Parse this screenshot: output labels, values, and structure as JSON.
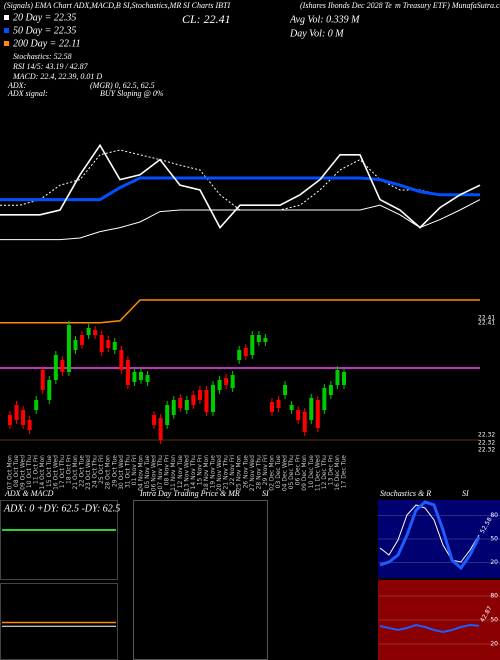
{
  "header": {
    "title_parts": [
      "(Signals) EMA Chart ADX,MACD,B",
      "SI,Stochastics,MR",
      "SI Charts IBTI",
      "(Ishares Ibonds Dec 2028 Te",
      "m Treasury ETF) MunafaSutra.com"
    ],
    "close": "CL: 22.41",
    "avg_vol": "Avg Vol: 0.339 M",
    "day_vol": "Day Vol: 0  M",
    "legend": [
      "20 Day = 22.35",
      "50 Day = 22.35",
      "200 Day = 22.11",
      "Stochastics: 52.58",
      "RSI 14/5: 43.19 / 42.87",
      "MACD: 22.4, 22.39, 0.01 D"
    ],
    "adx": "ADX:",
    "adx_values": "(MGR) 0, 62.5, 62.5",
    "adx_signal": "ADX signal:",
    "adx_signal_value": "BUY Sloping @ 0%",
    "price_labels": [
      "22.41",
      "22.41",
      "22.32",
      "22.32",
      "22.32"
    ]
  },
  "chart_data": [
    {
      "type": "line",
      "x": [
        0,
        1,
        2,
        3,
        4,
        5,
        6,
        7,
        8,
        9,
        10,
        11,
        12,
        13,
        14,
        15,
        16,
        17,
        18,
        19,
        20,
        21,
        22,
        23,
        24
      ],
      "xlim": [
        0,
        24
      ],
      "ylim": [
        22.12,
        22.45
      ],
      "series": [
        {
          "color": "#ffffff",
          "style": "dotted",
          "width": 1,
          "values": [
            22.356,
            22.356,
            22.363,
            22.381,
            22.388,
            22.419,
            22.425,
            22.419,
            22.413,
            22.406,
            22.4,
            22.369,
            22.35,
            22.35,
            22.35,
            22.356,
            22.375,
            22.4,
            22.413,
            22.388,
            22.375,
            22.375,
            22.369,
            22.369,
            22.381
          ]
        },
        {
          "color": "#ffffff",
          "style": "solid",
          "width": 1,
          "values": [
            22.313,
            22.313,
            22.313,
            22.313,
            22.315,
            22.323,
            22.328,
            22.335,
            22.348,
            22.35,
            22.35,
            22.35,
            22.35,
            22.35,
            22.35,
            22.35,
            22.35,
            22.35,
            22.35,
            22.356,
            22.344,
            22.328,
            22.338,
            22.35,
            22.363
          ]
        },
        {
          "color": "#0050ff",
          "style": "solid",
          "width": 3,
          "values": [
            22.363,
            22.363,
            22.363,
            22.363,
            22.363,
            22.363,
            22.378,
            22.39,
            22.39,
            22.39,
            22.39,
            22.39,
            22.39,
            22.39,
            22.39,
            22.39,
            22.39,
            22.39,
            22.39,
            22.388,
            22.381,
            22.373,
            22.369,
            22.369,
            22.369
          ]
        },
        {
          "color": "#ffffff",
          "style": "solid",
          "width": 1.6,
          "values": [
            22.344,
            22.344,
            22.344,
            22.35,
            22.394,
            22.431,
            22.388,
            22.394,
            22.413,
            22.381,
            22.375,
            22.328,
            22.356,
            22.356,
            22.356,
            22.369,
            22.388,
            22.419,
            22.419,
            22.363,
            22.35,
            22.328,
            22.353,
            22.369,
            22.381
          ]
        },
        {
          "color": "#ff8c00",
          "style": "solid",
          "width": 1.5,
          "values": [
            22.209,
            22.209,
            22.209,
            22.209,
            22.209,
            22.209,
            22.2115,
            22.2375,
            22.2375,
            22.2375,
            22.2375,
            22.2375,
            22.2375,
            22.2375,
            22.2375,
            22.2375,
            22.2375,
            22.2375,
            22.2375,
            22.2375,
            22.2375,
            22.2375,
            22.2375,
            22.2375,
            22.2375
          ]
        },
        {
          "color": "#ff44ff",
          "style": "solid",
          "width": 1.5,
          "values": [
            22.1525,
            22.1525,
            22.1525,
            22.1525,
            22.1525,
            22.1525,
            22.1525,
            22.1525,
            22.1525,
            22.1525,
            22.1525,
            22.1525,
            22.1525,
            22.1525,
            22.1525,
            22.1525,
            22.1525,
            22.1525,
            22.1525,
            22.1525,
            22.1525,
            22.1525,
            22.1525,
            22.1525,
            22.1525
          ]
        }
      ]
    },
    {
      "type": "candlestick",
      "categories": [
        "07 Oct Mon",
        "08 Oct Tue",
        "09 Oct Wed",
        "10 Oct Thu",
        "11 Oct Fri",
        "14 Oct Mon",
        "15 Oct Tue",
        "16 Oct Wed",
        "17 Oct Thu",
        "18 Oct Fri",
        "21 Oct Mon",
        "22 Oct Tue",
        "23 Oct Wed",
        "24 Oct Thu",
        "25 Oct Fri",
        "28 Oct Mon",
        "29 Oct Tue",
        "30 Oct Wed",
        "31 Oct Thu",
        "01 Nov Fri",
        "04 Nov Mon",
        "05 Nov Tue",
        "06 Nov Wed",
        "07 Nov Thu",
        "08 Nov Fri",
        "11 Nov Mon",
        "12 Nov Tue",
        "13 Nov Wed",
        "14 Nov Thu",
        "15 Nov Fri",
        "18 Nov Mon",
        "19 Nov Tue",
        "20 Nov Wed",
        "21 Nov Thu",
        "22 Nov Fri",
        "25 Nov Mon",
        "26 Nov Tue",
        "27 Nov Wed",
        "28 Nov Thu",
        "29 Nov Fri",
        "02 Dec Mon",
        "03 Dec Tue",
        "04 Dec Wed",
        "05 Dec Thu",
        "06 Dec Fri",
        "09 Dec Mon",
        "10 Dec Tue",
        "11 Dec Wed",
        "12 Dec Thu",
        "13 Dec Fri",
        "16 Dec Mon",
        "17 Dec Tue"
      ],
      "open": [
        22.335,
        22.345,
        22.34,
        22.33,
        22.34,
        22.38,
        22.35,
        22.37,
        22.39,
        22.378,
        22.4,
        22.415,
        22.415,
        22.42,
        22.415,
        22.41,
        22.4,
        22.4,
        22.39,
        22.368,
        22.37,
        22.368,
        22.335,
        22.332,
        22.325,
        22.335,
        22.352,
        22.34,
        22.355,
        22.36,
        22.36,
        22.338,
        22.36,
        22.372,
        22.362,
        22.39,
        22.402,
        22.395,
        22.408,
        22.408,
        22.348,
        22.35,
        22.355,
        22.34,
        22.34,
        22.338,
        22.33,
        22.35,
        22.34,
        22.355,
        22.365,
        22.365
      ],
      "high": [
        22.339,
        22.349,
        22.344,
        22.334,
        22.354,
        22.384,
        22.374,
        22.399,
        22.394,
        22.429,
        22.414,
        22.419,
        22.426,
        22.424,
        22.419,
        22.414,
        22.412,
        22.404,
        22.394,
        22.382,
        22.382,
        22.379,
        22.339,
        22.336,
        22.349,
        22.354,
        22.356,
        22.354,
        22.359,
        22.364,
        22.364,
        22.369,
        22.374,
        22.376,
        22.379,
        22.404,
        22.406,
        22.419,
        22.419,
        22.416,
        22.352,
        22.354,
        22.369,
        22.349,
        22.344,
        22.342,
        22.356,
        22.354,
        22.366,
        22.369,
        22.384,
        22.382
      ],
      "low": [
        22.321,
        22.326,
        22.321,
        22.316,
        22.336,
        22.356,
        22.346,
        22.366,
        22.374,
        22.374,
        22.396,
        22.401,
        22.411,
        22.411,
        22.394,
        22.398,
        22.396,
        22.376,
        22.361,
        22.364,
        22.366,
        22.364,
        22.321,
        22.306,
        22.321,
        22.331,
        22.338,
        22.336,
        22.341,
        22.346,
        22.334,
        22.334,
        22.356,
        22.361,
        22.358,
        22.386,
        22.39,
        22.391,
        22.404,
        22.404,
        22.334,
        22.338,
        22.351,
        22.336,
        22.326,
        22.314,
        22.326,
        22.318,
        22.336,
        22.351,
        22.361,
        22.361
      ],
      "close": [
        22.325,
        22.33,
        22.325,
        22.32,
        22.35,
        22.36,
        22.37,
        22.395,
        22.378,
        22.425,
        22.41,
        22.405,
        22.422,
        22.415,
        22.398,
        22.402,
        22.408,
        22.38,
        22.365,
        22.378,
        22.378,
        22.375,
        22.325,
        22.31,
        22.345,
        22.35,
        22.342,
        22.35,
        22.345,
        22.35,
        22.338,
        22.365,
        22.37,
        22.365,
        22.375,
        22.4,
        22.394,
        22.415,
        22.415,
        22.412,
        22.338,
        22.342,
        22.365,
        22.345,
        22.33,
        22.318,
        22.352,
        22.322,
        22.362,
        22.365,
        22.38,
        22.378
      ],
      "ylim": [
        22.3,
        22.45
      ],
      "up_color": "#00cc00",
      "down_color": "#ff0000"
    },
    {
      "type": "adx",
      "title": "ADX & MACD",
      "text": "ADX: 0 +DY: 62.5 -DY: 62.5",
      "plus_di": 62.5,
      "minus_di": 62.5,
      "di_ylim": [
        0,
        100
      ],
      "plus_color": "#33cc33",
      "minus_color": "#ffffff",
      "macd": 22.4,
      "signal": 22.39,
      "macd_ylim": [
        22.3,
        22.5
      ],
      "macd_color": "#ff8c00",
      "signal_color": "#ffffff"
    },
    {
      "type": "panel",
      "title_parts": [
        "Intra Day Trading Price  & MR",
        "SI"
      ]
    },
    {
      "type": "stochastics",
      "title_parts": [
        "Stochastics & R",
        "SI"
      ],
      "x": [
        0,
        1,
        2,
        3,
        4,
        5,
        6,
        7,
        8,
        9,
        10,
        11
      ],
      "xlim": [
        0,
        11
      ],
      "ylim": [
        0,
        100
      ],
      "yticks": [
        20,
        50,
        80
      ],
      "background": "#000070",
      "series": [
        {
          "color": "#ffffff",
          "width": 1,
          "values": [
            38.5,
            29.5,
            48.7,
            80.8,
            93.6,
            89.7,
            74.4,
            42.3,
            23,
            20.5,
            35.9,
            55
          ]
        },
        {
          "color": "#1f5cff",
          "width": 3,
          "values": [
            16.7,
            20.5,
            29.5,
            55,
            87,
            97.4,
            93.6,
            61.5,
            23,
            12.8,
            29.5,
            52.58
          ],
          "value_labels": [
            null,
            null,
            null,
            null,
            null,
            null,
            null,
            null,
            null,
            null,
            null,
            "52.58"
          ]
        }
      ]
    },
    {
      "type": "rsi",
      "x": [
        0,
        1,
        2,
        3,
        4,
        5,
        6,
        7,
        8,
        9,
        10,
        11
      ],
      "xlim": [
        0,
        11
      ],
      "ylim": [
        0,
        100
      ],
      "yticks": [
        20,
        50,
        80
      ],
      "background": "#8b0000",
      "series": [
        {
          "color": "#1f5cff",
          "width": 2,
          "values": [
            42.5,
            40,
            37.5,
            40,
            43.75,
            41.25,
            37.5,
            35,
            37.5,
            41.25,
            43.75,
            42.87
          ],
          "value_labels": [
            null,
            null,
            null,
            null,
            null,
            null,
            null,
            null,
            null,
            null,
            null,
            "42.87"
          ]
        }
      ]
    }
  ]
}
